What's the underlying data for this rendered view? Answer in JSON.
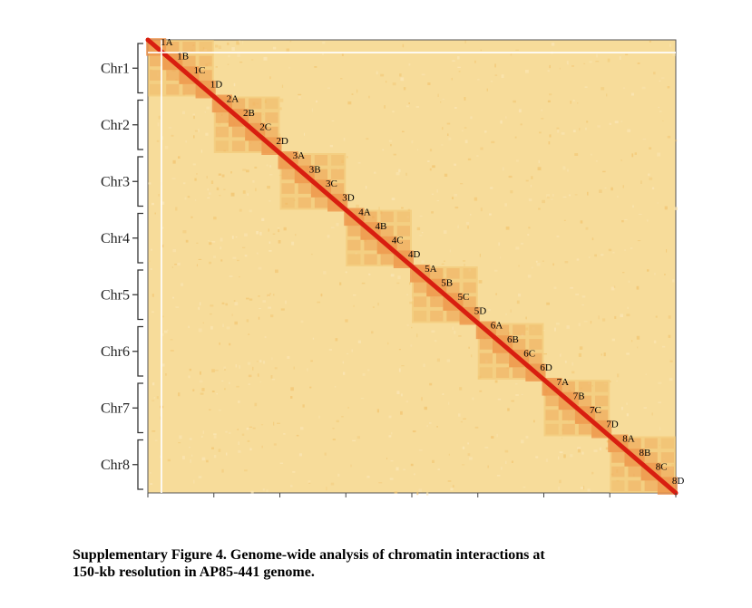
{
  "chart_data": {
    "type": "heatmap",
    "title": "",
    "xlabel": "",
    "ylabel": "",
    "chromosomes": [
      "Chr1",
      "Chr2",
      "Chr3",
      "Chr4",
      "Chr5",
      "Chr6",
      "Chr7",
      "Chr8"
    ],
    "subgenome_domains": [
      "1A",
      "1B",
      "1C",
      "1D",
      "2A",
      "2B",
      "2C",
      "2D",
      "3A",
      "3B",
      "3C",
      "3D",
      "4A",
      "4B",
      "4C",
      "4D",
      "5A",
      "5B",
      "5C",
      "5D",
      "6A",
      "6B",
      "6C",
      "6D",
      "7A",
      "7B",
      "7C",
      "7D",
      "8A",
      "8B",
      "8C",
      "8D"
    ],
    "blocks_per_chromosome": 4,
    "colors": {
      "background": "#f7dc9a",
      "low": "#f2c46f",
      "mid": "#ec8a3e",
      "high": "#d81e10",
      "frame": "#444444"
    },
    "grid": false,
    "legend": "none"
  },
  "caption": {
    "line1": "Supplementary Figure 4. Genome-wide analysis of chromatin interactions at",
    "line2": "150-kb resolution in AP85-441 genome."
  }
}
